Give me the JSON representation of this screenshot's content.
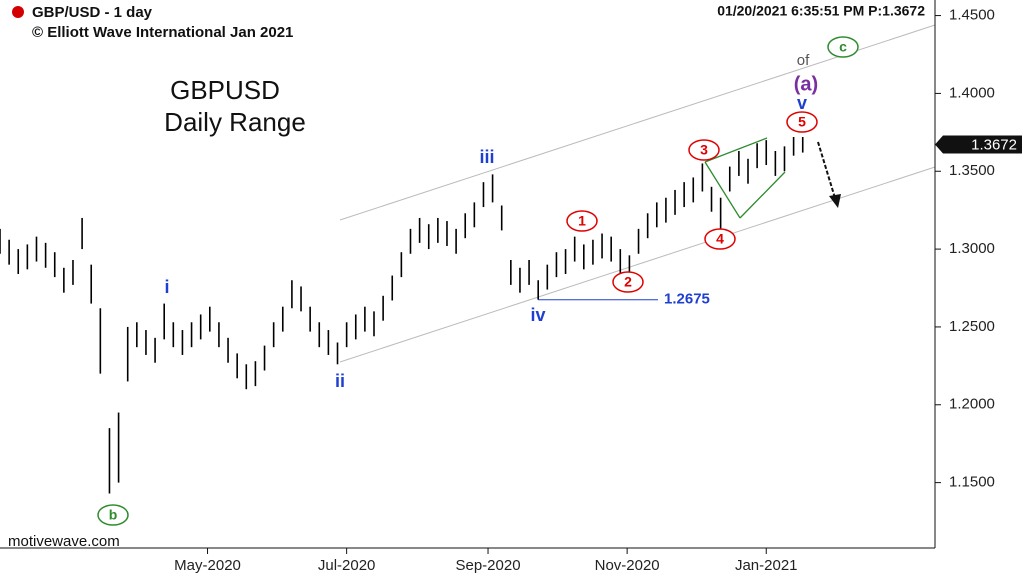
{
  "chart_data": {
    "type": "range",
    "header": "GBP/USD - 1 day",
    "copyright": "© Elliott Wave International Jan 2021",
    "timestamp": "01/20/2021 6:35:51 PM  P:1.3672",
    "title": "GBPUSD",
    "subtitle": "Daily Range",
    "watermark": "motivewave.com",
    "color": "#000000",
    "x": [
      30,
      34,
      38,
      42,
      46,
      50,
      54,
      58,
      62,
      66,
      70,
      74,
      78,
      82,
      86,
      90,
      94,
      98,
      102,
      106,
      110,
      114,
      118,
      122,
      126,
      130,
      134,
      138,
      142,
      146,
      150,
      154,
      158,
      162,
      166,
      170,
      174,
      178,
      182,
      186,
      190,
      194,
      198,
      202,
      206,
      210,
      214,
      218,
      222,
      226,
      230,
      234,
      238,
      242,
      246,
      250,
      254,
      258,
      262,
      266,
      270,
      274,
      278,
      282,
      286,
      290,
      294,
      298,
      302,
      306,
      310,
      314,
      318,
      322,
      326,
      330,
      334,
      338,
      342,
      346,
      350,
      354,
      358,
      362,
      366,
      370,
      374,
      378,
      382
    ],
    "series": [
      {
        "highs": [
          1.313,
          1.306,
          1.3,
          1.303,
          1.308,
          1.304,
          1.298,
          1.288,
          1.293,
          1.32,
          1.29,
          1.262,
          1.185,
          1.195,
          1.25,
          1.253,
          1.248,
          1.243,
          1.265,
          1.253,
          1.248,
          1.253,
          1.258,
          1.263,
          1.253,
          1.243,
          1.233,
          1.226,
          1.228,
          1.238,
          1.253,
          1.263,
          1.28,
          1.276,
          1.263,
          1.253,
          1.248,
          1.24,
          1.253,
          1.258,
          1.263,
          1.26,
          1.27,
          1.283,
          1.298,
          1.313,
          1.32,
          1.316,
          1.32,
          1.318,
          1.313,
          1.323,
          1.33,
          1.343,
          1.348,
          1.328,
          1.293,
          1.288,
          1.293,
          1.28,
          1.29,
          1.298,
          1.3,
          1.308,
          1.303,
          1.306,
          1.31,
          1.308,
          1.3,
          1.296,
          1.313,
          1.323,
          1.33,
          1.333,
          1.338,
          1.343,
          1.346,
          1.355,
          1.34,
          1.333,
          1.353,
          1.363,
          1.358,
          1.368,
          1.37,
          1.363,
          1.366,
          1.372,
          1.372
        ],
        "lows": [
          1.297,
          1.29,
          1.284,
          1.287,
          1.292,
          1.288,
          1.282,
          1.272,
          1.277,
          1.3,
          1.265,
          1.22,
          1.143,
          1.15,
          1.215,
          1.237,
          1.232,
          1.227,
          1.242,
          1.237,
          1.232,
          1.237,
          1.242,
          1.247,
          1.237,
          1.227,
          1.217,
          1.21,
          1.212,
          1.222,
          1.237,
          1.247,
          1.262,
          1.26,
          1.247,
          1.237,
          1.232,
          1.226,
          1.237,
          1.242,
          1.247,
          1.244,
          1.254,
          1.267,
          1.282,
          1.297,
          1.304,
          1.3,
          1.304,
          1.302,
          1.297,
          1.307,
          1.314,
          1.327,
          1.33,
          1.312,
          1.277,
          1.272,
          1.277,
          1.2675,
          1.274,
          1.282,
          1.284,
          1.292,
          1.287,
          1.29,
          1.294,
          1.292,
          1.284,
          1.28,
          1.297,
          1.307,
          1.314,
          1.317,
          1.322,
          1.327,
          1.33,
          1.337,
          1.324,
          1.312,
          1.337,
          1.347,
          1.342,
          1.352,
          1.354,
          1.347,
          1.35,
          1.36,
          1.362
        ]
      }
    ],
    "xlim": [
      30,
      440
    ],
    "ylim": [
      1.108,
      1.46
    ],
    "xticks": [
      {
        "value": 121,
        "label": "May-2020"
      },
      {
        "value": 182,
        "label": "Jul-2020"
      },
      {
        "value": 244,
        "label": "Sep-2020"
      },
      {
        "value": 305,
        "label": "Nov-2020"
      },
      {
        "value": 366,
        "label": "Jan-2021"
      }
    ],
    "yticks": [
      {
        "value": 1.15,
        "label": "1.1500"
      },
      {
        "value": 1.2,
        "label": "1.2000"
      },
      {
        "value": 1.25,
        "label": "1.2500"
      },
      {
        "value": 1.3,
        "label": "1.3000"
      },
      {
        "value": 1.35,
        "label": "1.3500"
      },
      {
        "value": 1.4,
        "label": "1.4000"
      },
      {
        "value": 1.45,
        "label": "1.4500"
      }
    ],
    "level": 1.2675,
    "last_price": 1.3672,
    "annotations": [
      "i",
      "ii",
      "iii",
      "iv",
      "v",
      "(a)",
      "of",
      "c",
      "b",
      "1",
      "2",
      "3",
      "4",
      "5"
    ]
  }
}
